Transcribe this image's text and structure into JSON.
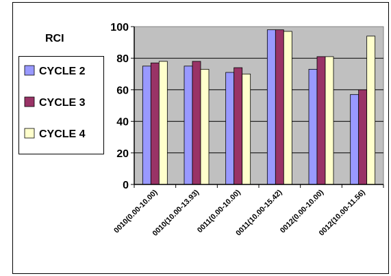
{
  "chart_data": {
    "type": "bar",
    "legend_title": "RCI",
    "categories": [
      "0010(0.00-10.00)",
      "0010(10.00-13.93)",
      "0011(0.00-10.00)",
      "0011(10.00-15.42)",
      "0012(0.00-10.00)",
      "0012(10.00-11.56)"
    ],
    "series": [
      {
        "name": "CYCLE 2",
        "color": "#9999ff",
        "values": [
          75,
          75,
          71,
          98,
          73,
          57
        ]
      },
      {
        "name": "CYCLE 3",
        "color": "#993366",
        "values": [
          77,
          78,
          74,
          98,
          81,
          60
        ]
      },
      {
        "name": "CYCLE 4",
        "color": "#ffffcc",
        "values": [
          78,
          73,
          70,
          97,
          81,
          94
        ]
      }
    ],
    "ylim": [
      0,
      100
    ],
    "yticks": [
      0,
      20,
      40,
      60,
      80,
      100
    ],
    "grid": true,
    "legend_position": "left"
  }
}
